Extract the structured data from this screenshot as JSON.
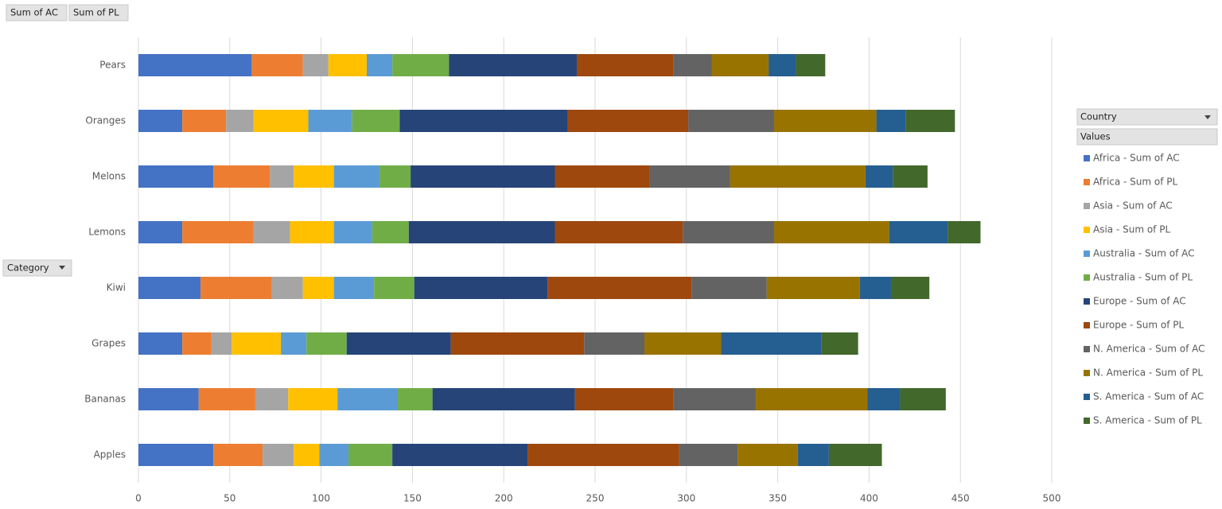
{
  "pivot_buttons": {
    "values": [
      "Sum of AC",
      "Sum of PL"
    ],
    "axis": "Category",
    "legend": "Country",
    "legend_header": "Values"
  },
  "chart_data": {
    "type": "bar",
    "orientation": "horizontal",
    "stacked": true,
    "grid": true,
    "legend_position": "right",
    "categories": [
      "Apples",
      "Bananas",
      "Grapes",
      "Kiwi",
      "Lemons",
      "Melons",
      "Oranges",
      "Pears"
    ],
    "xlim": [
      0,
      500
    ],
    "xticks": [
      0,
      50,
      100,
      150,
      200,
      250,
      300,
      350,
      400,
      450,
      500
    ],
    "series": [
      {
        "name": "Africa - Sum of AC",
        "color": "#4472c4",
        "values": [
          41,
          33,
          24,
          34,
          24,
          41,
          24,
          62
        ]
      },
      {
        "name": "Africa - Sum of PL",
        "color": "#ed7d31",
        "values": [
          27,
          31,
          16,
          39,
          39,
          31,
          24,
          28
        ]
      },
      {
        "name": "Asia - Sum of AC",
        "color": "#a5a5a5",
        "values": [
          17,
          18,
          11,
          17,
          20,
          13,
          15,
          14
        ]
      },
      {
        "name": "Asia - Sum of PL",
        "color": "#ffc000",
        "values": [
          14,
          27,
          27,
          17,
          24,
          22,
          30,
          21
        ]
      },
      {
        "name": "Australia  - Sum of AC",
        "color": "#5b9bd5",
        "values": [
          16,
          33,
          14,
          22,
          21,
          25,
          24,
          14
        ]
      },
      {
        "name": "Australia  - Sum of PL",
        "color": "#70ad47",
        "values": [
          24,
          19,
          22,
          22,
          20,
          17,
          26,
          31
        ]
      },
      {
        "name": "Europe - Sum of AC",
        "color": "#264478",
        "values": [
          74,
          78,
          57,
          73,
          80,
          79,
          92,
          70
        ]
      },
      {
        "name": "Europe - Sum of PL",
        "color": "#9e480e",
        "values": [
          83,
          54,
          73,
          79,
          70,
          52,
          66,
          53
        ]
      },
      {
        "name": "N. America - Sum of AC",
        "color": "#636363",
        "values": [
          32,
          45,
          33,
          41,
          50,
          44,
          47,
          21
        ]
      },
      {
        "name": "N. America - Sum of PL",
        "color": "#997300",
        "values": [
          33,
          61,
          42,
          51,
          63,
          74,
          56,
          31
        ]
      },
      {
        "name": "S. America - Sum of AC",
        "color": "#255e91",
        "values": [
          17,
          18,
          55,
          17,
          32,
          15,
          16,
          15
        ]
      },
      {
        "name": "S. America - Sum of PL",
        "color": "#43682b",
        "values": [
          29,
          25,
          20,
          21,
          18,
          19,
          27,
          16
        ]
      }
    ]
  }
}
